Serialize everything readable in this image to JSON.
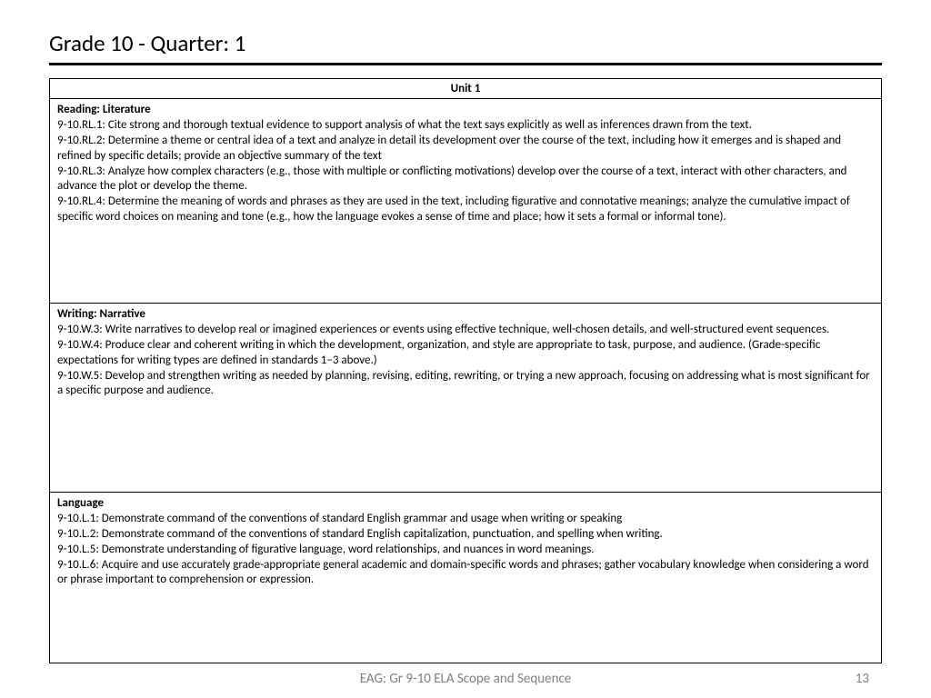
{
  "title": "Grade 10 - Quarter: 1",
  "unit_header": "Unit 1",
  "sections": [
    {
      "heading": "Reading:  Literature",
      "standards": [
        "9-10.RL.1: Cite strong and thorough textual evidence to support analysis of what the text says explicitly as well as inferences drawn from the text.",
        "9-10.RL.2: Determine a theme or central idea of a text and analyze in detail its development over the course of the text, including how it emerges and is shaped and refined by specific details; provide an objective summary of the text",
        "9-10.RL.3: Analyze how complex characters (e.g., those with multiple or conflicting motivations) develop over the course of a text, interact with other characters, and advance the plot or develop the theme.",
        "9-10.RL.4: Determine the meaning of words and phrases as they are used in the text, including figurative and connotative meanings; analyze the cumulative impact of specific word choices on meaning and tone (e.g., how the language evokes a sense of time and place; how it sets a formal or informal tone)."
      ]
    },
    {
      "heading": "Writing: Narrative",
      "standards": [
        "9-10.W.3: Write narratives to develop real or imagined experiences or events using effective technique, well-chosen details, and well-structured event sequences.",
        "9-10.W.4: Produce clear and coherent writing in which the development, organization, and style are appropriate to task, purpose, and audience. (Grade-specific expectations for writing types are defined in standards 1–3 above.)",
        "9-10.W.5: Develop and strengthen writing as needed by planning, revising, editing, rewriting, or trying a new approach, focusing on addressing what is most significant for a specific purpose and audience."
      ]
    },
    {
      "heading": "Language",
      "standards": [
        "9-10.L.1: Demonstrate command of the conventions of standard English grammar and usage when writing or speaking",
        "9-10.L.2: Demonstrate command of the conventions of standard English capitalization, punctuation, and spelling when writing.",
        "9-10.L.5: Demonstrate understanding of figurative language, word relationships, and nuances in word meanings.",
        "9-10.L.6: Acquire and use accurately grade-appropriate general academic and domain-specific words and phrases; gather vocabulary knowledge when considering a word or phrase important to comprehension or expression."
      ]
    }
  ],
  "footer_text": "EAG:  Gr 9-10 ELA Scope and Sequence",
  "page_number": "13",
  "styling": {
    "page_bg": "#ffffff",
    "text_color": "#000000",
    "footer_color": "#808080",
    "border_color": "#000000",
    "title_fontsize": 25,
    "body_fontsize": 13,
    "footer_fontsize": 15,
    "font_family": "Calibri"
  }
}
